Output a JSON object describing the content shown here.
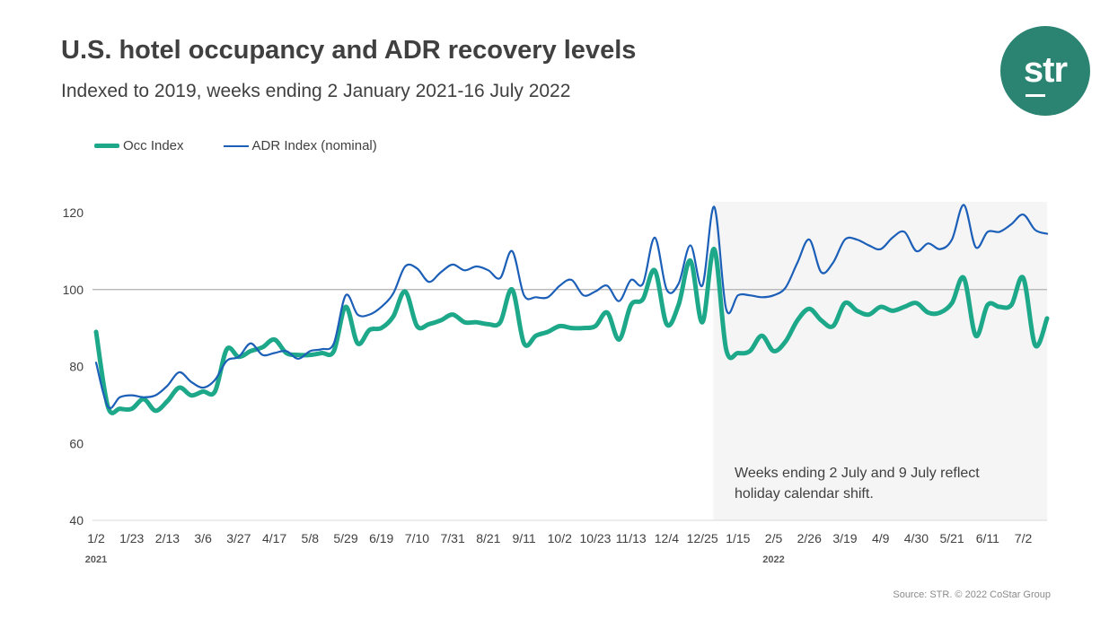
{
  "header": {
    "title": "U.S. hotel occupancy and ADR recovery levels",
    "subtitle": "Indexed to 2019, weeks ending 2 January 2021-16 July 2022"
  },
  "logo": {
    "text": "str",
    "color": "#2b8472"
  },
  "source": "Source: STR. © 2022 CoStar Group",
  "chart_data": {
    "type": "line",
    "title": "U.S. hotel occupancy and ADR recovery levels",
    "subtitle": "Indexed to 2019, weeks ending 2 January 2021-16 July 2022",
    "xlabel": "",
    "ylabel": "",
    "ylim": [
      40,
      120
    ],
    "yticks": [
      "120",
      "100",
      "80",
      "60",
      "40"
    ],
    "ytick_values": [
      120,
      100,
      80,
      60,
      40
    ],
    "reference_line": 100,
    "grid": false,
    "legend_placement": "top-left",
    "x": [
      "1/2/2021",
      "1/9/2021",
      "1/16/2021",
      "1/23/2021",
      "1/30/2021",
      "2/6/2021",
      "2/13/2021",
      "2/20/2021",
      "2/27/2021",
      "3/6/2021",
      "3/13/2021",
      "3/20/2021",
      "3/27/2021",
      "4/3/2021",
      "4/10/2021",
      "4/17/2021",
      "4/24/2021",
      "5/1/2021",
      "5/8/2021",
      "5/15/2021",
      "5/22/2021",
      "5/29/2021",
      "6/5/2021",
      "6/12/2021",
      "6/19/2021",
      "6/26/2021",
      "7/3/2021",
      "7/10/2021",
      "7/17/2021",
      "7/24/2021",
      "7/31/2021",
      "8/7/2021",
      "8/14/2021",
      "8/21/2021",
      "8/28/2021",
      "9/4/2021",
      "9/11/2021",
      "9/18/2021",
      "9/25/2021",
      "10/2/2021",
      "10/9/2021",
      "10/16/2021",
      "10/23/2021",
      "10/30/2021",
      "11/6/2021",
      "11/13/2021",
      "11/20/2021",
      "11/27/2021",
      "12/4/2021",
      "12/11/2021",
      "12/18/2021",
      "12/25/2021",
      "1/1/2022",
      "1/8/2022",
      "1/15/2022",
      "1/22/2022",
      "1/29/2022",
      "2/5/2022",
      "2/12/2022",
      "2/19/2022",
      "2/26/2022",
      "3/5/2022",
      "3/12/2022",
      "3/19/2022",
      "3/26/2022",
      "4/2/2022",
      "4/9/2022",
      "4/16/2022",
      "4/23/2022",
      "4/30/2022",
      "5/7/2022",
      "5/14/2022",
      "5/21/2022",
      "5/28/2022",
      "6/4/2022",
      "6/11/2022",
      "6/18/2022",
      "6/25/2022",
      "7/2/2022",
      "7/9/2022",
      "7/16/2022"
    ],
    "xtick_labels": [
      "1/2",
      "1/23",
      "2/13",
      "3/6",
      "3/27",
      "4/17",
      "5/8",
      "5/29",
      "6/19",
      "7/10",
      "7/31",
      "8/21",
      "9/11",
      "10/2",
      "10/23",
      "11/13",
      "12/4",
      "12/25",
      "1/15",
      "2/5",
      "2/26",
      "3/19",
      "4/9",
      "4/30",
      "5/21",
      "6/11",
      "7/2"
    ],
    "year_labels": [
      {
        "label": "2021",
        "at": "1/2/2021"
      },
      {
        "label": "2022",
        "at": "2/5/2022"
      }
    ],
    "series": [
      {
        "name": "Occ Index",
        "color": "#1ea88a",
        "values": [
          89,
          69.5,
          69,
          69,
          71.5,
          68.5,
          71,
          74.5,
          72.5,
          73.5,
          73.5,
          84.5,
          82.5,
          84,
          85,
          87,
          83.5,
          83,
          83,
          83.5,
          84,
          95.5,
          86,
          89.5,
          90,
          93,
          99.5,
          90.5,
          91,
          92,
          93.5,
          91.5,
          91.5,
          91,
          91.5,
          100,
          86,
          88,
          89,
          90.5,
          90,
          90,
          90.5,
          94,
          87,
          96,
          97.5,
          105,
          91,
          96,
          107.5,
          91.5,
          110.5,
          84.5,
          83.5,
          84,
          88,
          84,
          86.5,
          92,
          95,
          92,
          90.5,
          96.5,
          94.5,
          93.5,
          95.5,
          94.5,
          95.5,
          96.5,
          94,
          94,
          96.5,
          103,
          88,
          96,
          95.5,
          96,
          103,
          85.5,
          92.5
        ]
      },
      {
        "name": "ADR Index (nominal)",
        "color": "#1c5fb8",
        "values": [
          81,
          69.5,
          72,
          72.5,
          72,
          72.5,
          75,
          78.5,
          76,
          74.5,
          76.5,
          81.5,
          82.5,
          86,
          83,
          83.5,
          84,
          82,
          84,
          84.5,
          86,
          98.5,
          93.5,
          93.5,
          95.5,
          99,
          106,
          105.5,
          102,
          104.5,
          106.5,
          105,
          106,
          105,
          103,
          110,
          98.5,
          98,
          98,
          101,
          102.5,
          98.5,
          99.5,
          101,
          97,
          102.5,
          101.5,
          113.5,
          100,
          101.5,
          111.5,
          101,
          121.5,
          95,
          98.5,
          98.5,
          98,
          98.5,
          100.5,
          107,
          113,
          104.5,
          107,
          113,
          113,
          111.5,
          110.5,
          113.5,
          115,
          110,
          112,
          110.5,
          113,
          122,
          111,
          115,
          115,
          117,
          119.5,
          115.5,
          114.5
        ]
      }
    ],
    "shaded_region": {
      "from": "1/1/2022",
      "to": "7/16/2022",
      "color": "#f5f5f5"
    },
    "annotation": {
      "lines": [
        "Weeks ending 2 July and 9 July reflect",
        "holiday calendar shift."
      ]
    }
  }
}
